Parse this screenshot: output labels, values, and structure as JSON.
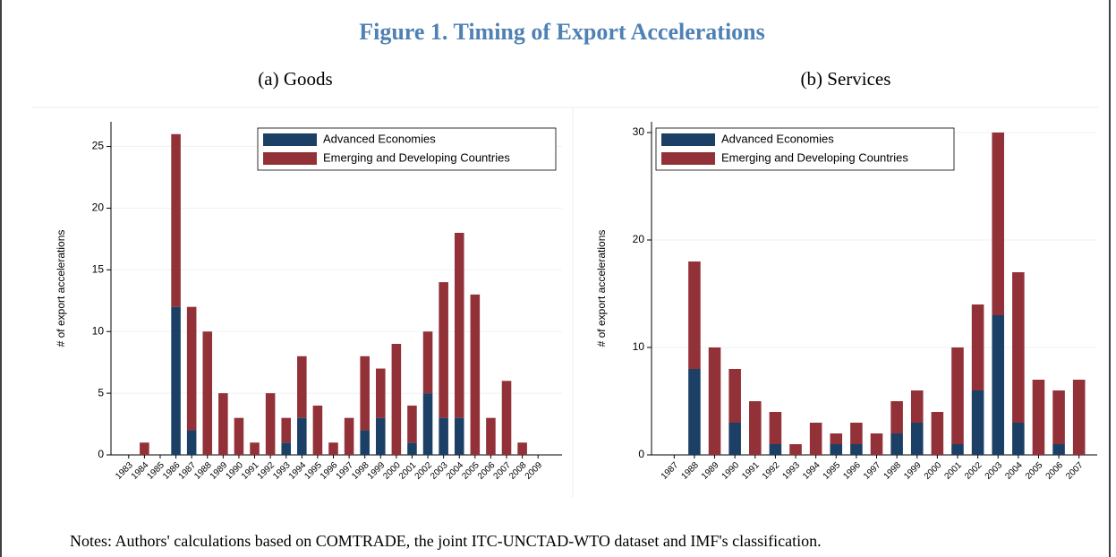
{
  "title": "Figure 1. Timing of Export Accelerations",
  "notes": "Notes: Authors' calculations based on COMTRADE, the joint ITC-UNCTAD-WTO dataset and IMF's classification.",
  "chart_data": [
    {
      "type": "bar",
      "stacked": true,
      "subtitle": "(a) Goods",
      "y_label": "# of export accelerations",
      "categories": [
        "1983",
        "1984",
        "1985",
        "1986",
        "1987",
        "1988",
        "1989",
        "1990",
        "1991",
        "1992",
        "1993",
        "1994",
        "1995",
        "1996",
        "1997",
        "1998",
        "1999",
        "2000",
        "2001",
        "2002",
        "2003",
        "2004",
        "2005",
        "2006",
        "2007",
        "2008",
        "2009"
      ],
      "series": [
        {
          "name": "Advanced Economies",
          "color": "#1c3f66",
          "values": [
            0,
            0,
            0,
            12,
            2,
            0,
            0,
            0,
            0,
            0,
            1,
            3,
            0,
            0,
            0,
            2,
            3,
            0,
            1,
            5,
            3,
            3,
            0,
            0,
            0,
            0,
            0
          ]
        },
        {
          "name": "Emerging and Developing Countries",
          "color": "#923238",
          "values": [
            0,
            1,
            0,
            14,
            10,
            10,
            5,
            3,
            1,
            5,
            2,
            5,
            4,
            1,
            3,
            6,
            4,
            9,
            3,
            5,
            11,
            15,
            13,
            3,
            6,
            1,
            0
          ]
        }
      ],
      "ylim": [
        0,
        27
      ],
      "yticks": [
        0,
        5,
        10,
        15,
        20,
        25
      ],
      "grid": true,
      "legend": "top-right"
    },
    {
      "type": "bar",
      "stacked": true,
      "subtitle": "(b) Services",
      "y_label": "# of export accelerations",
      "categories": [
        "1987",
        "1988",
        "1989",
        "1990",
        "1991",
        "1992",
        "1993",
        "1994",
        "1995",
        "1996",
        "1997",
        "1998",
        "1999",
        "2000",
        "2001",
        "2002",
        "2003",
        "2004",
        "2005",
        "2006",
        "2007"
      ],
      "series": [
        {
          "name": "Advanced Economies",
          "color": "#1c3f66",
          "values": [
            0,
            8,
            0,
            3,
            0,
            1,
            0,
            0,
            1,
            1,
            0,
            2,
            3,
            0,
            1,
            6,
            13,
            3,
            0,
            1,
            0
          ]
        },
        {
          "name": "Emerging and Developing Countries",
          "color": "#923238",
          "values": [
            0,
            10,
            10,
            5,
            5,
            3,
            1,
            3,
            1,
            2,
            2,
            3,
            3,
            4,
            9,
            8,
            17,
            14,
            7,
            5,
            7
          ]
        }
      ],
      "ylim": [
        0,
        31
      ],
      "yticks": [
        0,
        10,
        20,
        30
      ],
      "grid": true,
      "legend": "top-left"
    }
  ]
}
